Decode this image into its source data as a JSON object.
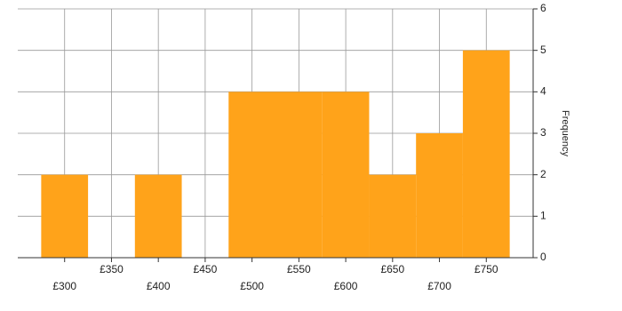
{
  "chart_data": {
    "type": "histogram",
    "bins": [
      275,
      325,
      375,
      425,
      475,
      525,
      575,
      625,
      675,
      725,
      775
    ],
    "counts": [
      2,
      0,
      2,
      0,
      4,
      4,
      4,
      2,
      3,
      5
    ],
    "color": "#ffa31a",
    "xlim": [
      250,
      800
    ],
    "xticks": [
      {
        "value": 300,
        "label": "£300"
      },
      {
        "value": 350,
        "label": "£350"
      },
      {
        "value": 400,
        "label": "£400"
      },
      {
        "value": 450,
        "label": "£450"
      },
      {
        "value": 500,
        "label": "£500"
      },
      {
        "value": 550,
        "label": "£550"
      },
      {
        "value": 600,
        "label": "£600"
      },
      {
        "value": 650,
        "label": "£650"
      },
      {
        "value": 700,
        "label": "£700"
      },
      {
        "value": 750,
        "label": "£750"
      }
    ],
    "ylim": [
      0,
      6
    ],
    "yticks": [
      0,
      1,
      2,
      3,
      4,
      5,
      6
    ],
    "ylabel": "Frequency",
    "grid": true
  }
}
